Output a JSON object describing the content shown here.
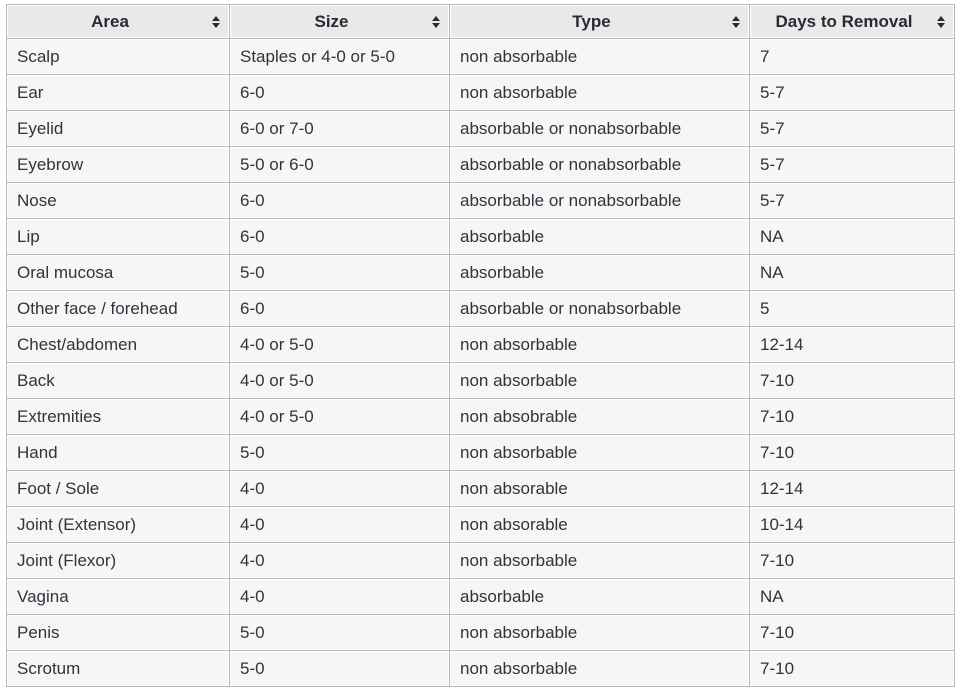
{
  "colors": {
    "header_bg": "#e8e9eb",
    "row_bg": "#f6f6f8",
    "border": "#b7b8bc",
    "text": "#333338"
  },
  "table": {
    "columns": [
      "Area",
      "Size",
      "Type",
      "Days to Removal"
    ],
    "sort_icon": "sort-updown-icon",
    "rows": [
      [
        "Scalp",
        "Staples or 4-0 or 5-0",
        "non absorbable",
        "7"
      ],
      [
        "Ear",
        "6-0",
        "non absorbable",
        "5-7"
      ],
      [
        "Eyelid",
        "6-0 or 7-0",
        "absorbable or nonabsorbable",
        "5-7"
      ],
      [
        "Eyebrow",
        "5-0 or 6-0",
        "absorbable or nonabsorbable",
        "5-7"
      ],
      [
        "Nose",
        "6-0",
        "absorbable or nonabsorbable",
        "5-7"
      ],
      [
        "Lip",
        "6-0",
        "absorbable",
        "NA"
      ],
      [
        "Oral mucosa",
        "5-0",
        "absorbable",
        "NA"
      ],
      [
        "Other face / forehead",
        "6-0",
        "absorbable or nonabsorbable",
        "5"
      ],
      [
        "Chest/abdomen",
        "4-0 or 5-0",
        "non absorbable",
        "12-14"
      ],
      [
        "Back",
        "4-0 or 5-0",
        "non absorbable",
        "7-10"
      ],
      [
        "Extremities",
        "4-0 or 5-0",
        "non absobrable",
        "7-10"
      ],
      [
        "Hand",
        "5-0",
        "non absorbable",
        "7-10"
      ],
      [
        "Foot / Sole",
        "4-0",
        "non absorable",
        "12-14"
      ],
      [
        "Joint (Extensor)",
        "4-0",
        "non absorable",
        "10-14"
      ],
      [
        "Joint (Flexor)",
        "4-0",
        "non absorbable",
        "7-10"
      ],
      [
        "Vagina",
        "4-0",
        "absorbable",
        "NA"
      ],
      [
        "Penis",
        "5-0",
        "non absorbable",
        "7-10"
      ],
      [
        "Scrotum",
        "5-0",
        "non absorbable",
        "7-10"
      ]
    ]
  }
}
